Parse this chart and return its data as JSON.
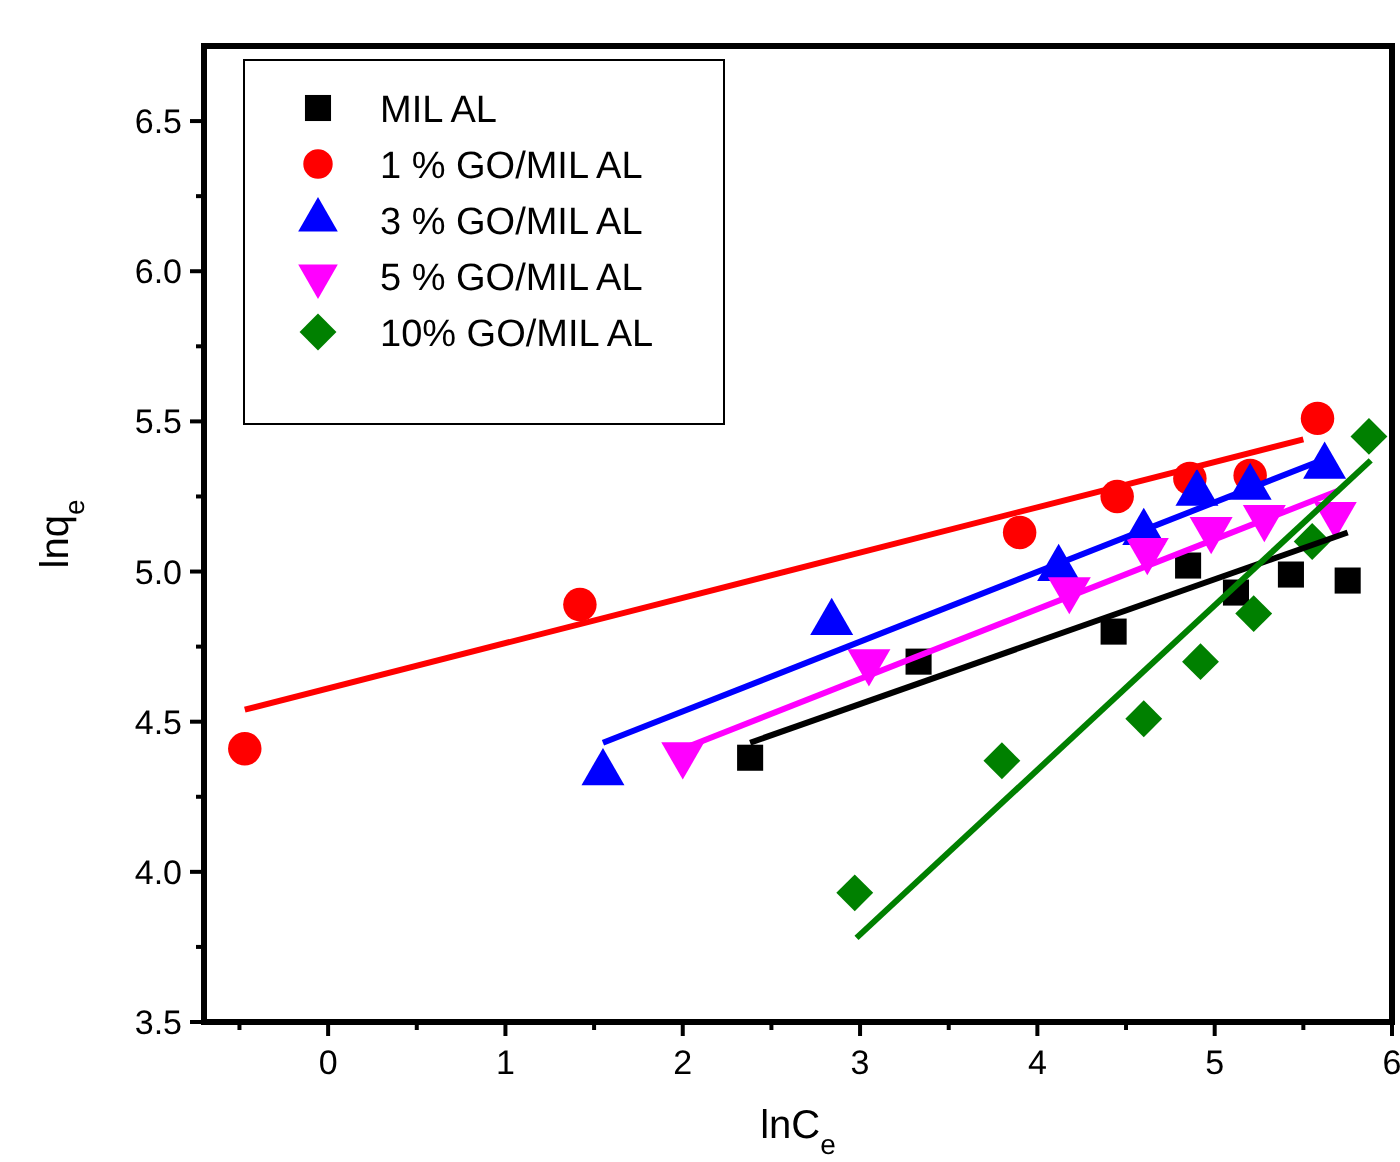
{
  "chart_data": {
    "type": "scatter",
    "xlabel": "lnC$_{e}$",
    "ylabel": "lnq$_{e}$",
    "xlim": [
      -0.7,
      6
    ],
    "ylim": [
      3.5,
      6.75
    ],
    "xticks": [
      {
        "value": -0.5,
        "label": null
      },
      0,
      {
        "value": 0.5,
        "label": null
      },
      1,
      {
        "value": 1.5,
        "label": null
      },
      2,
      {
        "value": 2.5,
        "label": null
      },
      3,
      {
        "value": 3.5,
        "label": null
      },
      4,
      {
        "value": 4.5,
        "label": null
      },
      5,
      {
        "value": 5.5,
        "label": null
      },
      6
    ],
    "yticks": [
      {
        "value": 3.5,
        "label": "3.5"
      },
      {
        "value": 3.75,
        "label": null
      },
      {
        "value": 4,
        "label": "4.0"
      },
      {
        "value": 4.25,
        "label": null
      },
      {
        "value": 4.5,
        "label": "4.5"
      },
      {
        "value": 4.75,
        "label": null
      },
      {
        "value": 5,
        "label": "5.0"
      },
      {
        "value": 5.25,
        "label": null
      },
      {
        "value": 5.5,
        "label": "5.5"
      },
      {
        "value": 5.75,
        "label": null
      },
      {
        "value": 6,
        "label": "6.0"
      },
      {
        "value": 6.25,
        "label": null
      },
      {
        "value": 6.5,
        "label": "6.5"
      }
    ],
    "grid": false,
    "legend": "top left",
    "series": [
      {
        "name": "MIL AL",
        "color": "#000000",
        "marker": "square",
        "x": [
          2.38,
          3.33,
          4.43,
          4.85,
          5.12,
          5.43,
          5.75
        ],
        "values": [
          4.38,
          4.7,
          4.8,
          5.02,
          4.93,
          4.99,
          4.97
        ]
      },
      {
        "name": "1  % GO/MIL AL",
        "color": "#ff0000",
        "marker": "circle",
        "x": [
          -0.47,
          1.42,
          3.9,
          4.45,
          4.86,
          5.2,
          5.58
        ],
        "values": [
          4.41,
          4.89,
          5.13,
          5.25,
          5.31,
          5.32,
          5.51
        ]
      },
      {
        "name": "3  % GO/MIL AL",
        "color": "#0000ff",
        "marker": "triangle",
        "x": [
          1.55,
          2.84,
          4.12,
          4.6,
          4.9,
          5.2,
          5.62
        ],
        "values": [
          4.33,
          4.83,
          5.01,
          5.13,
          5.26,
          5.28,
          5.35
        ]
      },
      {
        "name": "5  % GO/MIL AL",
        "color": "#ff00ff",
        "marker": "triangle-down",
        "x": [
          2.0,
          3.05,
          4.18,
          4.62,
          4.98,
          5.28,
          5.68
        ],
        "values": [
          4.39,
          4.7,
          4.94,
          5.07,
          5.14,
          5.18,
          5.19
        ]
      },
      {
        "name": "10% GO/MIL AL",
        "color": "#008000",
        "marker": "diamond",
        "x": [
          2.97,
          3.8,
          4.6,
          4.92,
          5.22,
          5.55,
          5.87
        ],
        "values": [
          3.93,
          4.37,
          4.51,
          4.7,
          4.86,
          5.1,
          5.45
        ]
      },
      {
        "type": "line",
        "color": "#000000",
        "x": [
          2.38,
          5.75
        ],
        "values": [
          4.43,
          5.13
        ]
      },
      {
        "type": "line",
        "color": "#ff0000",
        "x": [
          -0.47,
          5.5
        ],
        "values": [
          4.54,
          5.44
        ]
      },
      {
        "type": "line",
        "color": "#0000ff",
        "x": [
          1.55,
          5.6
        ],
        "values": [
          4.43,
          5.37
        ]
      },
      {
        "type": "line",
        "color": "#ff00ff",
        "x": [
          2.0,
          5.7
        ],
        "values": [
          4.41,
          5.27
        ]
      },
      {
        "type": "line",
        "color": "#008000",
        "x": [
          2.98,
          5.88
        ],
        "values": [
          3.78,
          5.37
        ]
      }
    ]
  }
}
